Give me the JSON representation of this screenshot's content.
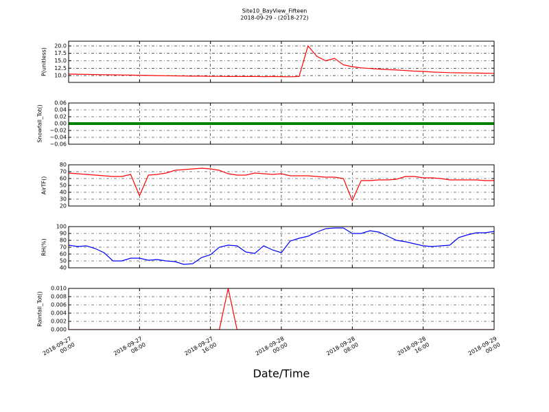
{
  "chart_data": [
    {
      "type": "line",
      "title": "Site10_BayView_Fifteen",
      "subtitle": "2018-09-29 - (2018-272)",
      "ylabel": "P(unitless)",
      "x": [
        "2018-09-27 00:00",
        "2018-09-27 01:00",
        "2018-09-27 02:00",
        "2018-09-27 03:00",
        "2018-09-27 04:00",
        "2018-09-27 05:00",
        "2018-09-27 06:00",
        "2018-09-27 07:00",
        "2018-09-27 08:00",
        "2018-09-27 09:00",
        "2018-09-27 10:00",
        "2018-09-27 11:00",
        "2018-09-27 12:00",
        "2018-09-27 13:00",
        "2018-09-27 14:00",
        "2018-09-27 15:00",
        "2018-09-27 16:00",
        "2018-09-27 17:00",
        "2018-09-27 18:00",
        "2018-09-27 19:00",
        "2018-09-27 20:00",
        "2018-09-27 21:00",
        "2018-09-27 22:00",
        "2018-09-27 23:00",
        "2018-09-28 00:00",
        "2018-09-28 01:00",
        "2018-09-28 02:00",
        "2018-09-28 03:00",
        "2018-09-28 04:00",
        "2018-09-28 05:00",
        "2018-09-28 06:00",
        "2018-09-28 07:00",
        "2018-09-28 08:00",
        "2018-09-28 09:00",
        "2018-09-28 10:00",
        "2018-09-28 11:00",
        "2018-09-28 12:00",
        "2018-09-28 13:00",
        "2018-09-28 14:00",
        "2018-09-28 15:00",
        "2018-09-28 16:00",
        "2018-09-28 17:00",
        "2018-09-28 18:00",
        "2018-09-28 19:00",
        "2018-09-28 20:00",
        "2018-09-28 21:00",
        "2018-09-28 22:00",
        "2018-09-28 23:00",
        "2018-09-29 00:00"
      ],
      "series": [
        {
          "color": "#ff0000",
          "values": [
            10.5,
            10.45,
            10.4,
            10.35,
            10.3,
            10.25,
            10.2,
            10.15,
            10.1,
            10.05,
            10.0,
            9.95,
            9.9,
            9.85,
            9.8,
            9.8,
            9.75,
            9.75,
            9.7,
            9.7,
            9.7,
            9.7,
            9.65,
            9.7,
            9.65,
            9.6,
            9.7,
            20.0,
            16.5,
            15.0,
            15.8,
            13.6,
            13.0,
            12.6,
            12.4,
            12.2,
            12.0,
            11.9,
            11.7,
            11.5,
            11.4,
            11.2,
            11.1,
            11.0,
            10.95,
            10.9,
            10.85,
            10.8,
            10.75
          ]
        }
      ],
      "xlim": [
        "2018-09-27 00:00",
        "2018-09-29 00:00"
      ],
      "xticks": [
        "2018-09-27 00:00",
        "2018-09-27 08:00",
        "2018-09-27 16:00",
        "2018-09-28 00:00",
        "2018-09-28 08:00",
        "2018-09-28 16:00",
        "2018-09-29 00:00"
      ],
      "ylim": [
        7.7,
        21.6
      ],
      "yticks": [
        {
          "value": 10,
          "label": "10.0"
        },
        12.5,
        {
          "value": 15,
          "label": "15.0"
        },
        17.5,
        {
          "value": 20,
          "label": "20.0"
        }
      ],
      "grid": true
    },
    {
      "type": "line",
      "ylabel": "Snowfall_Tot()",
      "x": [
        "2018-09-27 00:00",
        "2018-09-27 01:00",
        "2018-09-27 02:00",
        "2018-09-27 03:00",
        "2018-09-27 04:00",
        "2018-09-27 05:00",
        "2018-09-27 06:00",
        "2018-09-27 07:00",
        "2018-09-27 08:00",
        "2018-09-27 09:00",
        "2018-09-27 10:00",
        "2018-09-27 11:00",
        "2018-09-27 12:00",
        "2018-09-27 13:00",
        "2018-09-27 14:00",
        "2018-09-27 15:00",
        "2018-09-27 16:00",
        "2018-09-27 17:00",
        "2018-09-27 18:00",
        "2018-09-27 19:00",
        "2018-09-27 20:00",
        "2018-09-27 21:00",
        "2018-09-27 22:00",
        "2018-09-27 23:00",
        "2018-09-28 00:00",
        "2018-09-28 01:00",
        "2018-09-28 02:00",
        "2018-09-28 03:00",
        "2018-09-28 04:00",
        "2018-09-28 05:00",
        "2018-09-28 06:00",
        "2018-09-28 07:00",
        "2018-09-28 08:00",
        "2018-09-28 09:00",
        "2018-09-28 10:00",
        "2018-09-28 11:00",
        "2018-09-28 12:00",
        "2018-09-28 13:00",
        "2018-09-28 14:00",
        "2018-09-28 15:00",
        "2018-09-28 16:00",
        "2018-09-28 17:00",
        "2018-09-28 18:00",
        "2018-09-28 19:00",
        "2018-09-28 20:00",
        "2018-09-28 21:00",
        "2018-09-28 22:00",
        "2018-09-28 23:00",
        "2018-09-29 00:00"
      ],
      "series": [
        {
          "color": "#008000",
          "values": [
            0,
            0,
            0,
            0,
            0,
            0,
            0,
            0,
            0,
            0,
            0,
            0,
            0,
            0,
            0,
            0,
            0,
            0,
            0,
            0,
            0,
            0,
            0,
            0,
            0,
            0,
            0,
            0,
            0,
            0,
            0,
            0,
            0,
            0,
            0,
            0,
            0,
            0,
            0,
            0,
            0,
            0,
            0,
            0,
            0,
            0,
            0,
            0,
            0
          ]
        }
      ],
      "xlim": [
        "2018-09-27 00:00",
        "2018-09-29 00:00"
      ],
      "xticks": [
        "2018-09-27 00:00",
        "2018-09-27 08:00",
        "2018-09-27 16:00",
        "2018-09-28 00:00",
        "2018-09-28 08:00",
        "2018-09-28 16:00",
        "2018-09-29 00:00"
      ],
      "ylim": [
        -0.06,
        0.06
      ],
      "yticks": [
        {
          "value": -0.06,
          "label": "−0.06"
        },
        {
          "value": -0.04,
          "label": "−0.04"
        },
        {
          "value": -0.02,
          "label": "−0.02"
        },
        {
          "value": 0,
          "label": "0.00"
        },
        {
          "value": 0.02,
          "label": "0.02"
        },
        {
          "value": 0.04,
          "label": "0.04"
        },
        {
          "value": 0.06,
          "label": "0.06"
        }
      ],
      "grid": true
    },
    {
      "type": "line",
      "ylabel": "AirTF()",
      "x": [
        "2018-09-27 00:00",
        "2018-09-27 01:00",
        "2018-09-27 02:00",
        "2018-09-27 03:00",
        "2018-09-27 04:00",
        "2018-09-27 05:00",
        "2018-09-27 06:00",
        "2018-09-27 07:00",
        "2018-09-27 08:00",
        "2018-09-27 09:00",
        "2018-09-27 10:00",
        "2018-09-27 11:00",
        "2018-09-27 12:00",
        "2018-09-27 13:00",
        "2018-09-27 14:00",
        "2018-09-27 15:00",
        "2018-09-27 16:00",
        "2018-09-27 17:00",
        "2018-09-27 18:00",
        "2018-09-27 19:00",
        "2018-09-27 20:00",
        "2018-09-27 21:00",
        "2018-09-27 22:00",
        "2018-09-27 23:00",
        "2018-09-28 00:00",
        "2018-09-28 01:00",
        "2018-09-28 02:00",
        "2018-09-28 03:00",
        "2018-09-28 04:00",
        "2018-09-28 05:00",
        "2018-09-28 06:00",
        "2018-09-28 07:00",
        "2018-09-28 08:00",
        "2018-09-28 09:00",
        "2018-09-28 10:00",
        "2018-09-28 11:00",
        "2018-09-28 12:00",
        "2018-09-28 13:00",
        "2018-09-28 14:00",
        "2018-09-28 15:00",
        "2018-09-28 16:00",
        "2018-09-28 17:00",
        "2018-09-28 18:00",
        "2018-09-28 19:00",
        "2018-09-28 20:00",
        "2018-09-28 21:00",
        "2018-09-28 22:00",
        "2018-09-28 23:00",
        "2018-09-29 00:00"
      ],
      "series": [
        {
          "color": "#ff0000",
          "values": [
            68,
            67,
            66,
            65,
            64,
            63,
            63,
            66,
            35,
            65,
            66,
            68,
            72,
            73,
            74,
            75,
            74,
            72,
            67,
            65,
            65,
            68,
            67,
            66,
            67,
            64,
            64,
            64,
            63,
            62,
            62,
            60,
            28,
            57,
            57,
            58,
            58,
            59,
            63,
            63,
            61,
            61,
            60,
            58,
            58,
            58,
            58,
            57,
            57
          ]
        }
      ],
      "xlim": [
        "2018-09-27 00:00",
        "2018-09-29 00:00"
      ],
      "xticks": [
        "2018-09-27 00:00",
        "2018-09-27 08:00",
        "2018-09-27 16:00",
        "2018-09-28 00:00",
        "2018-09-28 08:00",
        "2018-09-28 16:00",
        "2018-09-29 00:00"
      ],
      "ylim": [
        20,
        80
      ],
      "yticks": [
        20,
        30,
        40,
        50,
        60,
        70,
        80
      ],
      "grid": true
    },
    {
      "type": "line",
      "ylabel": "RH(%)",
      "x": [
        "2018-09-27 00:00",
        "2018-09-27 01:00",
        "2018-09-27 02:00",
        "2018-09-27 03:00",
        "2018-09-27 04:00",
        "2018-09-27 05:00",
        "2018-09-27 06:00",
        "2018-09-27 07:00",
        "2018-09-27 08:00",
        "2018-09-27 09:00",
        "2018-09-27 10:00",
        "2018-09-27 11:00",
        "2018-09-27 12:00",
        "2018-09-27 13:00",
        "2018-09-27 14:00",
        "2018-09-27 15:00",
        "2018-09-27 16:00",
        "2018-09-27 17:00",
        "2018-09-27 18:00",
        "2018-09-27 19:00",
        "2018-09-27 20:00",
        "2018-09-27 21:00",
        "2018-09-27 22:00",
        "2018-09-27 23:00",
        "2018-09-28 00:00",
        "2018-09-28 01:00",
        "2018-09-28 02:00",
        "2018-09-28 03:00",
        "2018-09-28 04:00",
        "2018-09-28 05:00",
        "2018-09-28 06:00",
        "2018-09-28 07:00",
        "2018-09-28 08:00",
        "2018-09-28 09:00",
        "2018-09-28 10:00",
        "2018-09-28 11:00",
        "2018-09-28 12:00",
        "2018-09-28 13:00",
        "2018-09-28 14:00",
        "2018-09-28 15:00",
        "2018-09-28 16:00",
        "2018-09-28 17:00",
        "2018-09-28 18:00",
        "2018-09-28 19:00",
        "2018-09-28 20:00",
        "2018-09-28 21:00",
        "2018-09-28 22:00",
        "2018-09-28 23:00",
        "2018-09-29 00:00"
      ],
      "series": [
        {
          "color": "#0000ff",
          "values": [
            73,
            71,
            72,
            68,
            62,
            50,
            50,
            54,
            54,
            51,
            52,
            50,
            49,
            45,
            46,
            55,
            59,
            70,
            73,
            72,
            63,
            61,
            72,
            66,
            62,
            79,
            83,
            86,
            92,
            97,
            98,
            98,
            90,
            90,
            94,
            92,
            86,
            80,
            78,
            75,
            72,
            71,
            72,
            73,
            84,
            88,
            91,
            91,
            93
          ]
        }
      ],
      "xlim": [
        "2018-09-27 00:00",
        "2018-09-29 00:00"
      ],
      "xticks": [
        "2018-09-27 00:00",
        "2018-09-27 08:00",
        "2018-09-27 16:00",
        "2018-09-28 00:00",
        "2018-09-28 08:00",
        "2018-09-28 16:00",
        "2018-09-29 00:00"
      ],
      "ylim": [
        40,
        100
      ],
      "yticks": [
        40,
        50,
        60,
        70,
        80,
        90,
        100
      ],
      "grid": true
    },
    {
      "type": "line",
      "ylabel": "Rainfall_Tot()",
      "xlabel": "Date/Time",
      "x": [
        "2018-09-27 00:00",
        "2018-09-27 01:00",
        "2018-09-27 02:00",
        "2018-09-27 03:00",
        "2018-09-27 04:00",
        "2018-09-27 05:00",
        "2018-09-27 06:00",
        "2018-09-27 07:00",
        "2018-09-27 08:00",
        "2018-09-27 09:00",
        "2018-09-27 10:00",
        "2018-09-27 11:00",
        "2018-09-27 12:00",
        "2018-09-27 13:00",
        "2018-09-27 14:00",
        "2018-09-27 15:00",
        "2018-09-27 16:00",
        "2018-09-27 17:00",
        "2018-09-27 18:00",
        "2018-09-27 19:00",
        "2018-09-27 20:00",
        "2018-09-27 21:00",
        "2018-09-27 22:00",
        "2018-09-27 23:00",
        "2018-09-28 00:00",
        "2018-09-28 01:00",
        "2018-09-28 02:00",
        "2018-09-28 03:00",
        "2018-09-28 04:00",
        "2018-09-28 05:00",
        "2018-09-28 06:00",
        "2018-09-28 07:00",
        "2018-09-28 08:00",
        "2018-09-28 09:00",
        "2018-09-28 10:00",
        "2018-09-28 11:00",
        "2018-09-28 12:00",
        "2018-09-28 13:00",
        "2018-09-28 14:00",
        "2018-09-28 15:00",
        "2018-09-28 16:00",
        "2018-09-28 17:00",
        "2018-09-28 18:00",
        "2018-09-28 19:00",
        "2018-09-28 20:00",
        "2018-09-28 21:00",
        "2018-09-28 22:00",
        "2018-09-28 23:00",
        "2018-09-29 00:00"
      ],
      "series": [
        {
          "color": "#ff0000",
          "values": [
            0,
            0,
            0,
            0,
            0,
            0,
            0,
            0,
            0,
            0,
            0,
            0,
            0,
            0,
            0,
            0,
            0,
            0,
            0.01,
            0,
            0,
            0,
            0,
            0,
            0,
            0,
            0,
            0,
            0,
            0,
            0,
            0,
            0,
            0,
            0,
            0,
            0,
            0,
            0,
            0,
            0,
            0,
            0,
            0,
            0,
            0,
            0,
            0,
            0
          ]
        }
      ],
      "xlim": [
        "2018-09-27 00:00",
        "2018-09-29 00:00"
      ],
      "xticks": [
        "2018-09-27 00:00",
        "2018-09-27 08:00",
        "2018-09-27 16:00",
        "2018-09-28 00:00",
        "2018-09-28 08:00",
        "2018-09-28 16:00",
        "2018-09-29 00:00"
      ],
      "ylim": [
        0,
        0.01
      ],
      "yticks": [
        {
          "value": 0,
          "label": "0.000"
        },
        {
          "value": 0.002,
          "label": "0.002"
        },
        {
          "value": 0.004,
          "label": "0.004"
        },
        {
          "value": 0.006,
          "label": "0.006"
        },
        {
          "value": 0.008,
          "label": "0.008"
        },
        {
          "value": 0.01,
          "label": "0.010"
        }
      ],
      "grid": true
    }
  ]
}
